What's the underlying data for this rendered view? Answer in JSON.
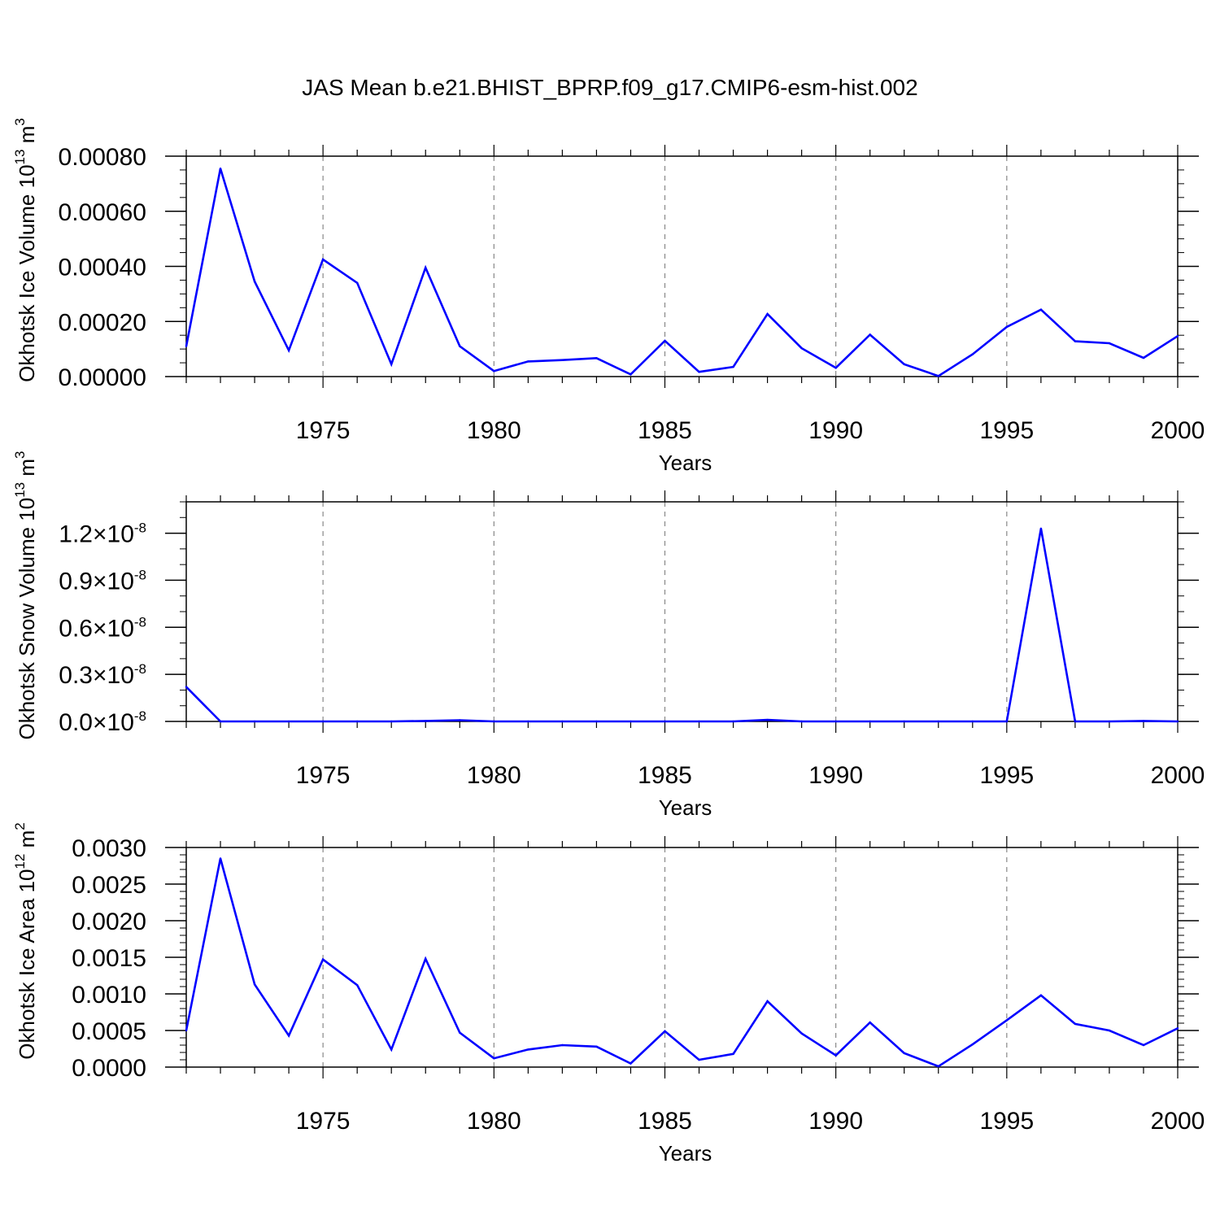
{
  "title": "JAS Mean b.e21.BHIST_BPRP.f09_g17.CMIP6-esm-hist.002",
  "colors": {
    "line": "#0000ff",
    "axis": "#000000",
    "grid": "#888888"
  },
  "chart_data": [
    {
      "type": "line",
      "ylabel_main": "Okhotsk Ice Volume 10",
      "ylabel_exp": "13",
      "ylabel_unit": "m",
      "ylabel_unit_exp": "3",
      "xlabel": "Years",
      "xlim": [
        1971,
        2000
      ],
      "ylim": [
        0,
        0.0008
      ],
      "x_ticks": [
        "1975",
        "1980",
        "1985",
        "1990",
        "1995",
        "2000"
      ],
      "y_ticks": [
        {
          "value": 0,
          "label": "0.00000"
        },
        {
          "value": 0.0002,
          "label": "0.00020"
        },
        {
          "value": 0.0004,
          "label": "0.00040"
        },
        {
          "value": 0.0006,
          "label": "0.00060"
        },
        {
          "value": 0.0008,
          "label": "0.00080"
        }
      ],
      "y_minor_step": 5e-05,
      "x": [
        1971,
        1972,
        1973,
        1974,
        1975,
        1976,
        1977,
        1978,
        1979,
        1980,
        1981,
        1982,
        1983,
        1984,
        1985,
        1986,
        1987,
        1988,
        1989,
        1990,
        1991,
        1992,
        1993,
        1994,
        1995,
        1996,
        1997,
        1998,
        1999,
        2000
      ],
      "values": [
        0.00011,
        0.000755,
        0.000345,
        9.5e-05,
        0.000425,
        0.00034,
        4.5e-05,
        0.000395,
        0.00011,
        2e-05,
        5.5e-05,
        6e-05,
        6.7e-05,
        8e-06,
        0.00013,
        1.7e-05,
        3.5e-05,
        0.000227,
        0.000103,
        3.2e-05,
        0.000152,
        4.5e-05,
        2e-06,
        8.1e-05,
        0.00018,
        0.000243,
        0.000128,
        0.000121,
        6.8e-05,
        0.000147
      ]
    },
    {
      "type": "line",
      "ylabel_main": "Okhotsk Snow Volume 10",
      "ylabel_exp": "13",
      "ylabel_unit": "m",
      "ylabel_unit_exp": "3",
      "xlabel": "Years",
      "xlim": [
        1971,
        2000
      ],
      "ylim": [
        0,
        1.4e-08
      ],
      "x_ticks": [
        "1975",
        "1980",
        "1985",
        "1990",
        "1995",
        "2000"
      ],
      "y_ticks": [
        {
          "value": 0,
          "label": "0.0",
          "exp": "-8"
        },
        {
          "value": 3e-09,
          "label": "0.3",
          "exp": "-8"
        },
        {
          "value": 6e-09,
          "label": "0.6",
          "exp": "-8"
        },
        {
          "value": 9e-09,
          "label": "0.9",
          "exp": "-8"
        },
        {
          "value": 1.2e-08,
          "label": "1.2",
          "exp": "-8"
        }
      ],
      "y_tick_multiplier": "×10",
      "y_minor_step": 1e-09,
      "x": [
        1971,
        1972,
        1973,
        1974,
        1975,
        1976,
        1977,
        1978,
        1979,
        1980,
        1981,
        1982,
        1983,
        1984,
        1985,
        1986,
        1987,
        1988,
        1989,
        1990,
        1991,
        1992,
        1993,
        1994,
        1995,
        1996,
        1997,
        1998,
        1999,
        2000
      ],
      "values": [
        2.2e-09,
        0,
        0,
        0,
        0,
        0,
        0,
        3e-11,
        8e-11,
        0,
        0,
        0,
        0,
        0,
        0,
        0,
        0,
        1e-10,
        0,
        0,
        0,
        0,
        0,
        0,
        0,
        1.23e-08,
        0,
        0,
        3e-11,
        0
      ]
    },
    {
      "type": "line",
      "ylabel_main": "Okhotsk Ice Area 10",
      "ylabel_exp": "12",
      "ylabel_unit": "m",
      "ylabel_unit_exp": "2",
      "xlabel": "Years",
      "xlim": [
        1971,
        2000
      ],
      "ylim": [
        0,
        0.003
      ],
      "x_ticks": [
        "1975",
        "1980",
        "1985",
        "1990",
        "1995",
        "2000"
      ],
      "y_ticks": [
        {
          "value": 0,
          "label": "0.0000"
        },
        {
          "value": 0.0005,
          "label": "0.0005"
        },
        {
          "value": 0.001,
          "label": "0.0010"
        },
        {
          "value": 0.0015,
          "label": "0.0015"
        },
        {
          "value": 0.002,
          "label": "0.0020"
        },
        {
          "value": 0.0025,
          "label": "0.0025"
        },
        {
          "value": 0.003,
          "label": "0.0030"
        }
      ],
      "y_minor_step": 0.0001,
      "x": [
        1971,
        1972,
        1973,
        1974,
        1975,
        1976,
        1977,
        1978,
        1979,
        1980,
        1981,
        1982,
        1983,
        1984,
        1985,
        1986,
        1987,
        1988,
        1989,
        1990,
        1991,
        1992,
        1993,
        1994,
        1995,
        1996,
        1997,
        1998,
        1999,
        2000
      ],
      "values": [
        0.0005,
        0.00285,
        0.00113,
        0.00043,
        0.00147,
        0.00112,
        0.00024,
        0.00148,
        0.00047,
        0.00012,
        0.00024,
        0.0003,
        0.00028,
        5e-05,
        0.00049,
        0.0001,
        0.00018,
        0.0009,
        0.00046,
        0.00016,
        0.00061,
        0.00019,
        1e-05,
        0.00031,
        0.00064,
        0.00098,
        0.00059,
        0.0005,
        0.0003,
        0.00053
      ]
    }
  ]
}
